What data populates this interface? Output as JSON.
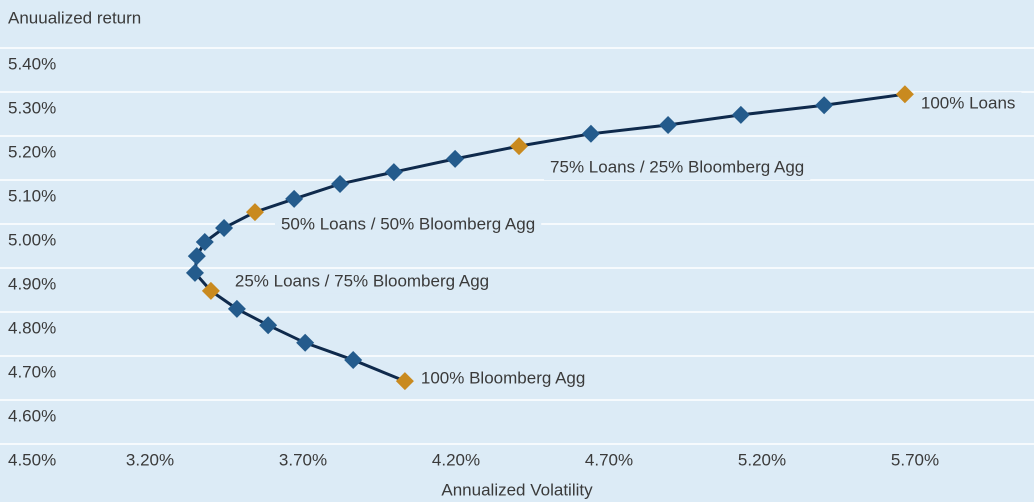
{
  "chart_data": {
    "type": "scatter",
    "y_label": "Anuualized return",
    "x_label": "Annualized Volatility",
    "xlim": [
      3.2,
      5.7
    ],
    "ylim": [
      4.5,
      5.4
    ],
    "yticks": [
      {
        "value": 4.5,
        "label": "4.50%"
      },
      {
        "value": 4.6,
        "label": "4.60%"
      },
      {
        "value": 4.7,
        "label": "4.70%"
      },
      {
        "value": 4.8,
        "label": "4.80%"
      },
      {
        "value": 4.9,
        "label": "4.90%"
      },
      {
        "value": 5.0,
        "label": "5.00%"
      },
      {
        "value": 5.1,
        "label": "5.10%"
      },
      {
        "value": 5.2,
        "label": "5.20%"
      },
      {
        "value": 5.3,
        "label": "5.30%"
      },
      {
        "value": 5.4,
        "label": "5.40%"
      }
    ],
    "xticks": [
      {
        "value": 3.2,
        "label": "3.20%"
      },
      {
        "value": 3.7,
        "label": "3.70%"
      },
      {
        "value": 4.2,
        "label": "4.20%"
      },
      {
        "value": 4.7,
        "label": "4.70%"
      },
      {
        "value": 5.2,
        "label": "5.20%"
      },
      {
        "value": 5.7,
        "label": "5.70%"
      }
    ],
    "grid": true,
    "line_color": "#0f2a4c",
    "series": [
      {
        "x": [
          4.033,
          3.864,
          3.707,
          3.586,
          3.484,
          3.399,
          3.347,
          3.353,
          3.379,
          3.442,
          3.543,
          3.671,
          3.821,
          3.997,
          4.197,
          4.406,
          4.641,
          4.893,
          5.131,
          5.403,
          5.667
        ],
        "values": [
          4.643,
          4.691,
          4.73,
          4.77,
          4.807,
          4.848,
          4.889,
          4.927,
          4.959,
          4.991,
          5.027,
          5.057,
          5.091,
          5.118,
          5.148,
          5.177,
          5.205,
          5.225,
          5.248,
          5.27,
          5.295
        ],
        "colors": [
          "#c98a1f",
          "#245b8c",
          "#245b8c",
          "#245b8c",
          "#245b8c",
          "#c98a1f",
          "#245b8c",
          "#245b8c",
          "#245b8c",
          "#245b8c",
          "#c98a1f",
          "#245b8c",
          "#245b8c",
          "#245b8c",
          "#245b8c",
          "#c98a1f",
          "#245b8c",
          "#245b8c",
          "#245b8c",
          "#245b8c",
          "#c98a1f"
        ]
      }
    ],
    "annotations": [
      {
        "text": "100% Bloomberg Agg",
        "point": 0
      },
      {
        "text": "25% Loans / 75% Bloomberg Agg",
        "point": 5
      },
      {
        "text": "50% Loans / 50% Bloomberg Agg",
        "point": 10
      },
      {
        "text": "75% Loans / 25% Bloomberg Agg",
        "point": 15
      },
      {
        "text": "100% Loans",
        "point": 20
      }
    ]
  }
}
